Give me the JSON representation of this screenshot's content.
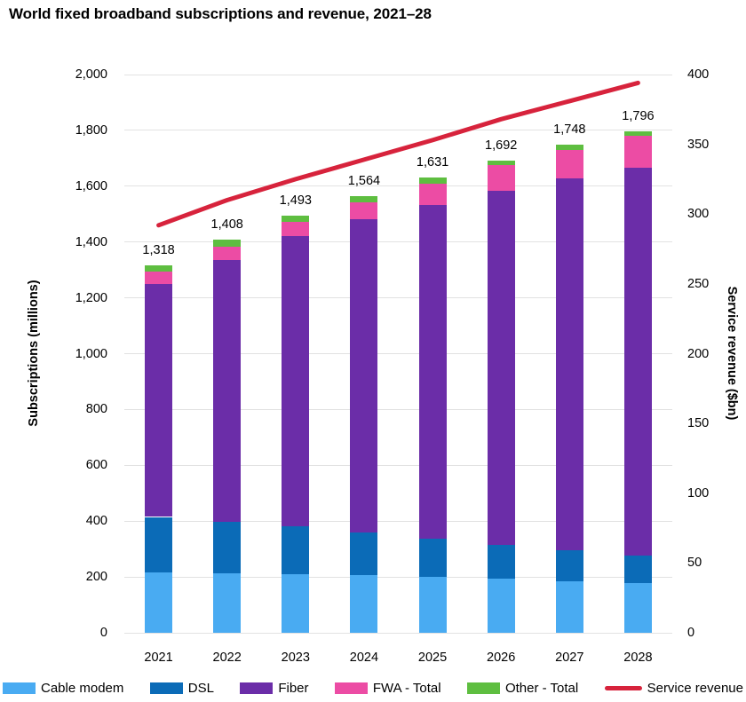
{
  "title": "World fixed broadband subscriptions and revenue, 2021–28",
  "chart_data": {
    "type": "bar",
    "subtype": "stacked-column-with-line-overlay",
    "title": "World fixed broadband subscriptions and revenue, 2021–28",
    "categories": [
      "2021",
      "2022",
      "2023",
      "2024",
      "2025",
      "2026",
      "2027",
      "2028"
    ],
    "series": [
      {
        "name": "Cable modem",
        "color": "#49ABF2",
        "values": [
          215,
          214,
          211,
          207,
          201,
          195,
          184,
          178
        ]
      },
      {
        "name": "DSL",
        "color": "#0B6BB7",
        "values": [
          200,
          182,
          170,
          151,
          135,
          121,
          111,
          98
        ]
      },
      {
        "name": "Fiber",
        "color": "#6B2DA8",
        "values": [
          835,
          941,
          1039,
          1123,
          1198,
          1269,
          1332,
          1389
        ]
      },
      {
        "name": "FWA - Total",
        "color": "#EC4CA4",
        "values": [
          45,
          47,
          51,
          62,
          74,
          91,
          104,
          115
        ]
      },
      {
        "name": "Other - Total",
        "color": "#5EBE40",
        "values": [
          23,
          24,
          22,
          21,
          23,
          16,
          17,
          16
        ]
      }
    ],
    "stack_total_labels": [
      "1,318",
      "1,408",
      "1,493",
      "1,564",
      "1,631",
      "1,692",
      "1,748",
      "1,796"
    ],
    "stack_totals": [
      1318,
      1408,
      1493,
      1564,
      1631,
      1692,
      1748,
      1796
    ],
    "line_series": {
      "name": "Service revenue",
      "color": "#D7233C",
      "axis": "right",
      "values": [
        292,
        310,
        325,
        339,
        353,
        368,
        381,
        394
      ]
    },
    "left_axis": {
      "title": "Subscriptions (millions)",
      "min": 0,
      "max": 2000,
      "ticks": [
        "0",
        "200",
        "400",
        "600",
        "800",
        "1,000",
        "1,200",
        "1,400",
        "1,600",
        "1,800",
        "2,000"
      ]
    },
    "right_axis": {
      "title": "Service revenue ($bn)",
      "min": 0,
      "max": 400,
      "ticks": [
        "0",
        "50",
        "100",
        "150",
        "200",
        "250",
        "300",
        "350",
        "400"
      ]
    },
    "grid": "horizontal-on",
    "legend_position": "bottom",
    "legend": [
      "Cable modem",
      "DSL",
      "Fiber",
      "FWA - Total",
      "Other - Total",
      "Service revenue"
    ]
  },
  "colors": {
    "background": "#FFFFFF",
    "gridline": "#E2E2E2",
    "text": "#000000"
  }
}
